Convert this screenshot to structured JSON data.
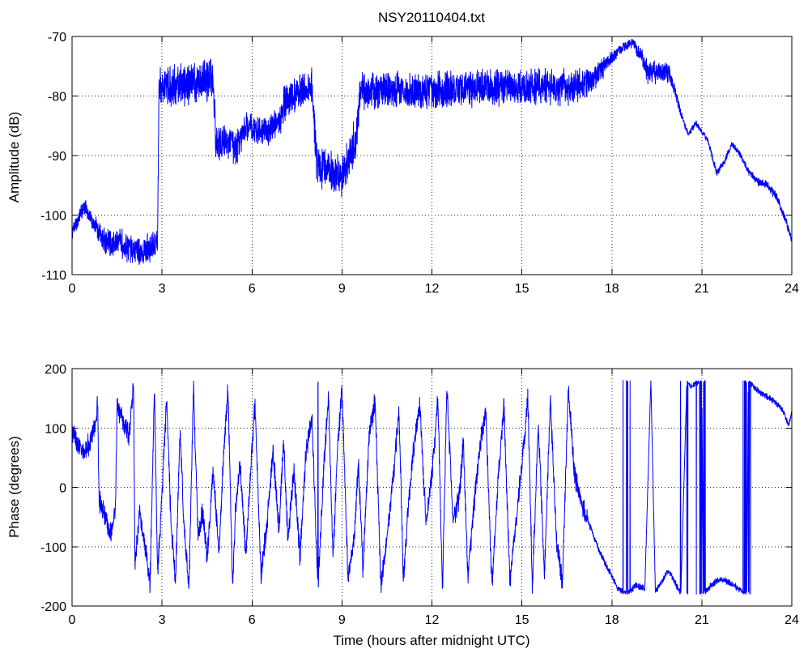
{
  "chart_data": [
    {
      "type": "line",
      "title": "NSY20110404.txt",
      "xlabel": "",
      "ylabel": "Amplitude (dB)",
      "xlim": [
        0,
        24
      ],
      "ylim": [
        -110,
        -70
      ],
      "x_ticks": [
        0,
        3,
        6,
        9,
        12,
        15,
        18,
        21,
        24
      ],
      "y_ticks": [
        -110,
        -100,
        -90,
        -80,
        -70
      ],
      "grid": true,
      "color": "#0000ff",
      "x": [
        0,
        0.15,
        0.3,
        0.45,
        0.6,
        0.8,
        1.0,
        1.3,
        1.6,
        2.0,
        2.4,
        2.75,
        2.85,
        2.9,
        3.4,
        4.0,
        4.7,
        4.8,
        5.1,
        5.5,
        5.8,
        6.0,
        6.5,
        7.0,
        7.05,
        7.5,
        8.0,
        8.15,
        8.3,
        8.7,
        9.0,
        9.3,
        9.5,
        9.6,
        10.5,
        12.0,
        14.0,
        15.5,
        16.5,
        17.2,
        17.6,
        18.0,
        18.3,
        18.7,
        19.0,
        19.2,
        19.5,
        19.9,
        20.1,
        20.3,
        20.55,
        20.8,
        21.2,
        21.5,
        21.8,
        22.0,
        22.3,
        22.6,
        22.9,
        23.2,
        23.5,
        23.8,
        24.0
      ],
      "values": [
        -103,
        -101.5,
        -99.5,
        -98.5,
        -100.5,
        -102,
        -104,
        -105,
        -104.5,
        -106,
        -106,
        -104.8,
        -105,
        -78,
        -78.5,
        -77.5,
        -77,
        -88,
        -87.5,
        -88.5,
        -85,
        -85.5,
        -86,
        -84,
        -81,
        -79.5,
        -78,
        -91,
        -92,
        -93,
        -94,
        -89,
        -87,
        -79,
        -79,
        -79,
        -78.5,
        -78.5,
        -78.5,
        -78,
        -76,
        -73.5,
        -72,
        -71,
        -73.5,
        -76,
        -76,
        -76,
        -79,
        -83,
        -86.5,
        -84.5,
        -87.5,
        -93,
        -90.5,
        -88,
        -90,
        -93,
        -94.5,
        -95,
        -97,
        -101,
        -104
      ],
      "noise_amplitude": [
        1,
        1,
        1,
        1,
        1,
        1.5,
        2,
        2,
        2,
        2,
        2,
        2,
        1.5,
        2.5,
        3,
        3,
        3,
        2.5,
        2.5,
        2.5,
        2,
        2,
        2,
        2,
        2.5,
        2.5,
        2.5,
        3,
        3,
        3,
        3,
        3,
        3,
        2.5,
        2.5,
        2.5,
        2.5,
        2.5,
        2.5,
        2,
        1.5,
        1,
        0.7,
        0.7,
        1.2,
        1.5,
        1.5,
        1.5,
        0.8,
        0.5,
        0.4,
        0.4,
        0.4,
        0.5,
        0.5,
        0.4,
        0.4,
        0.5,
        0.6,
        0.6,
        0.6,
        0.6,
        0.6
      ],
      "step_breaks": [
        2.85,
        4.75,
        7.05,
        8.15,
        9.55
      ]
    },
    {
      "type": "line",
      "title": "",
      "xlabel": "Time (hours after midnight UTC)",
      "ylabel": "Phase (degrees)",
      "xlim": [
        0,
        24
      ],
      "ylim": [
        -200,
        200
      ],
      "x_ticks": [
        0,
        3,
        6,
        9,
        12,
        15,
        18,
        21,
        24
      ],
      "y_ticks": [
        -200,
        -100,
        0,
        100,
        200
      ],
      "grid": true,
      "color": "#0000ff",
      "x": [
        0,
        0.2,
        0.4,
        0.6,
        0.8,
        0.85,
        0.9,
        1.1,
        1.3,
        1.45,
        1.5,
        1.7,
        1.9,
        2.05,
        2.1,
        2.25,
        2.4,
        2.6,
        2.75,
        2.85,
        3.0,
        3.15,
        3.3,
        3.45,
        3.6,
        3.75,
        3.9,
        4.05,
        4.2,
        4.35,
        4.5,
        4.7,
        4.9,
        5.05,
        5.2,
        5.35,
        5.45,
        5.6,
        5.8,
        5.95,
        6.1,
        6.3,
        6.5,
        6.7,
        6.9,
        7.05,
        7.2,
        7.4,
        7.6,
        7.8,
        8.0,
        8.2,
        8.4,
        8.55,
        8.7,
        8.85,
        9.0,
        9.2,
        9.4,
        9.55,
        9.7,
        9.9,
        10.1,
        10.3,
        10.5,
        10.7,
        10.9,
        11.05,
        11.2,
        11.4,
        11.6,
        11.8,
        12.0,
        12.2,
        12.35,
        12.5,
        12.7,
        12.9,
        13.05,
        13.2,
        13.4,
        13.6,
        13.8,
        14.0,
        14.2,
        14.4,
        14.6,
        14.8,
        15.0,
        15.2,
        15.35,
        15.55,
        15.75,
        15.95,
        16.15,
        16.35,
        16.55,
        16.75,
        17.0,
        17.3,
        17.6,
        17.9,
        18.2,
        18.5,
        18.8,
        19.1,
        19.3,
        19.45,
        19.6,
        19.75,
        19.9,
        20.1,
        20.3,
        20.5,
        20.6,
        20.8,
        21.0,
        21.05,
        21.3,
        21.6,
        21.9,
        22.2,
        22.5,
        22.55,
        22.8,
        23.1,
        23.4,
        23.7,
        23.9,
        24.0
      ],
      "values": [
        95,
        70,
        60,
        75,
        110,
        150,
        -20,
        -50,
        -80,
        -40,
        140,
        110,
        90,
        170,
        -130,
        -40,
        -90,
        -160,
        170,
        -150,
        -10,
        150,
        -60,
        -160,
        100,
        -80,
        -170,
        170,
        -80,
        -40,
        -120,
        30,
        -110,
        50,
        170,
        -170,
        -40,
        40,
        -120,
        30,
        140,
        -150,
        -60,
        60,
        -70,
        80,
        -90,
        30,
        -120,
        60,
        120,
        -170,
        40,
        150,
        -120,
        60,
        170,
        -150,
        -90,
        40,
        -140,
        80,
        150,
        -170,
        -80,
        10,
        130,
        -160,
        -40,
        70,
        140,
        -60,
        20,
        150,
        -170,
        170,
        -60,
        -20,
        80,
        -150,
        -30,
        70,
        130,
        -170,
        10,
        140,
        -160,
        -60,
        40,
        150,
        -170,
        110,
        -150,
        150,
        -90,
        -160,
        170,
        20,
        -30,
        -70,
        -110,
        -140,
        -170,
        -180,
        -165,
        -170,
        180,
        -175,
        -165,
        -150,
        -140,
        -160,
        -180,
        180,
        170,
        175,
        180,
        -180,
        -165,
        -155,
        -160,
        -170,
        -180,
        180,
        165,
        155,
        145,
        130,
        105,
        125
      ],
      "noise_amplitude": 14
    }
  ]
}
